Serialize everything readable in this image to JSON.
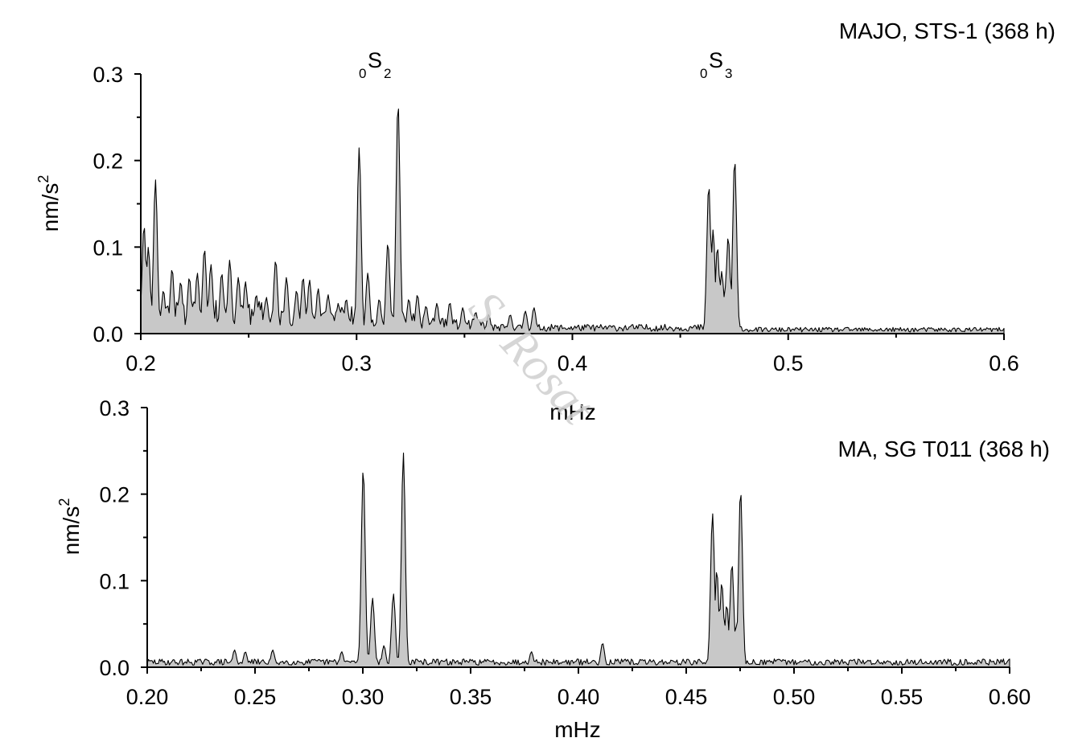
{
  "chart_data": [
    {
      "type": "area",
      "title": "MAJO, STS-1 (368 h)",
      "xlabel": "mHz",
      "ylabel_base": "nm/s",
      "ylabel_sup": "2",
      "xlim": [
        0.2,
        0.6
      ],
      "ylim": [
        0,
        0.3
      ],
      "xticks": [
        0.2,
        0.3,
        0.4,
        0.5,
        0.6
      ],
      "xtick_labels": [
        "0.2",
        "0.3",
        "0.4",
        "0.5",
        "0.6"
      ],
      "yticks": [
        0.0,
        0.1,
        0.2,
        0.3
      ],
      "ytick_labels": [
        "0.0",
        "0.1",
        "0.2",
        "0.3"
      ],
      "fill_color": "#c8c8c8",
      "line_color": "#000000",
      "annotations": [
        {
          "pre": "0",
          "main": "S",
          "sub": "2",
          "x": 0.308
        },
        {
          "pre": "0",
          "main": "S",
          "sub": "3",
          "x": 0.466
        }
      ],
      "peaks": [
        [
          0.2015,
          0.125
        ],
        [
          0.2035,
          0.1
        ],
        [
          0.2068,
          0.178
        ],
        [
          0.2105,
          0.05
        ],
        [
          0.2145,
          0.075
        ],
        [
          0.2185,
          0.06
        ],
        [
          0.2225,
          0.065
        ],
        [
          0.2262,
          0.07
        ],
        [
          0.2295,
          0.098
        ],
        [
          0.2325,
          0.08
        ],
        [
          0.2375,
          0.07
        ],
        [
          0.2412,
          0.085
        ],
        [
          0.2452,
          0.065
        ],
        [
          0.2485,
          0.06
        ],
        [
          0.2535,
          0.045
        ],
        [
          0.2582,
          0.042
        ],
        [
          0.2625,
          0.085
        ],
        [
          0.2675,
          0.065
        ],
        [
          0.2722,
          0.05
        ],
        [
          0.2752,
          0.065
        ],
        [
          0.2782,
          0.062
        ],
        [
          0.2822,
          0.052
        ],
        [
          0.2868,
          0.045
        ],
        [
          0.2915,
          0.035
        ],
        [
          0.2952,
          0.04
        ],
        [
          0.3012,
          0.215
        ],
        [
          0.3052,
          0.07
        ],
        [
          0.3105,
          0.04
        ],
        [
          0.3145,
          0.105
        ],
        [
          0.3192,
          0.268
        ],
        [
          0.3242,
          0.04
        ],
        [
          0.3282,
          0.045
        ],
        [
          0.3322,
          0.032
        ],
        [
          0.3372,
          0.035
        ],
        [
          0.3432,
          0.036
        ],
        [
          0.3492,
          0.03
        ],
        [
          0.3552,
          0.025
        ],
        [
          0.3612,
          0.022
        ],
        [
          0.3712,
          0.022
        ],
        [
          0.3782,
          0.026
        ],
        [
          0.3822,
          0.03
        ],
        [
          0.4632,
          0.172
        ],
        [
          0.4652,
          0.12
        ],
        [
          0.4672,
          0.1
        ],
        [
          0.4692,
          0.072
        ],
        [
          0.4722,
          0.112
        ],
        [
          0.4752,
          0.202
        ]
      ]
    },
    {
      "type": "area",
      "title": "MA, SG T011 (368 h)",
      "xlabel": "mHz",
      "ylabel_base": "nm/s",
      "ylabel_sup": "2",
      "xlim": [
        0.2,
        0.6
      ],
      "ylim": [
        0,
        0.3
      ],
      "xticks": [
        0.2,
        0.25,
        0.3,
        0.35,
        0.4,
        0.45,
        0.5,
        0.55,
        0.6
      ],
      "xtick_labels": [
        "0.20",
        "0.25",
        "0.30",
        "0.35",
        "0.40",
        "0.45",
        "0.50",
        "0.55",
        "0.60"
      ],
      "yticks": [
        0.0,
        0.1,
        0.2,
        0.3
      ],
      "ytick_labels": [
        "0.0",
        "0.1",
        "0.2",
        "0.3"
      ],
      "fill_color": "#c8c8c8",
      "line_color": "#000000",
      "peaks": [
        [
          0.2405,
          0.02
        ],
        [
          0.2455,
          0.018
        ],
        [
          0.2582,
          0.02
        ],
        [
          0.2902,
          0.018
        ],
        [
          0.3002,
          0.23
        ],
        [
          0.3045,
          0.08
        ],
        [
          0.3098,
          0.025
        ],
        [
          0.3142,
          0.085
        ],
        [
          0.3188,
          0.248
        ],
        [
          0.3782,
          0.018
        ],
        [
          0.4112,
          0.028
        ],
        [
          0.4622,
          0.178
        ],
        [
          0.4642,
          0.112
        ],
        [
          0.4665,
          0.098
        ],
        [
          0.4688,
          0.072
        ],
        [
          0.4712,
          0.12
        ],
        [
          0.4752,
          0.205
        ]
      ]
    }
  ],
  "watermark": "S. Rosat"
}
